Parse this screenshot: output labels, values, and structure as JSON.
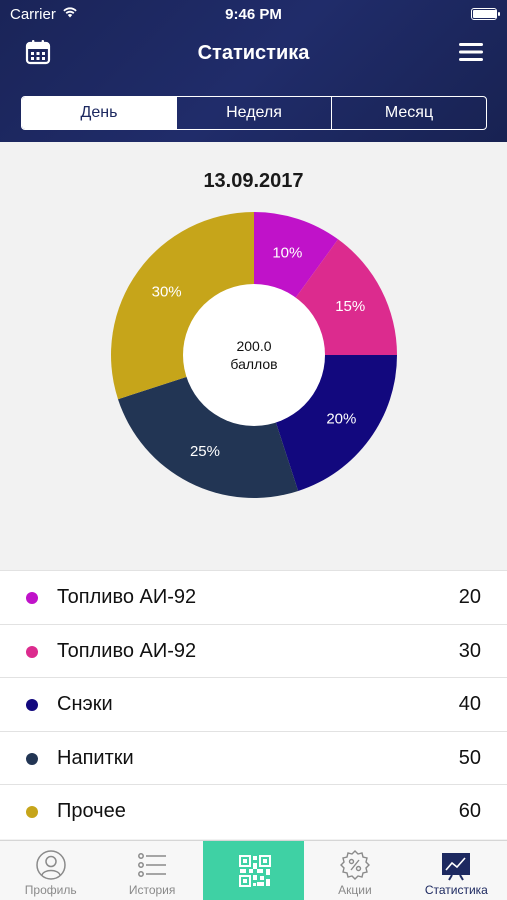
{
  "status": {
    "carrier": "Carrier",
    "time": "9:46 PM",
    "battery_level": 1.0
  },
  "nav": {
    "title": "Статистика",
    "left_icon": "calendar-icon",
    "right_icon": "hamburger-menu-icon"
  },
  "segments": [
    {
      "label": "День",
      "active": true
    },
    {
      "label": "Неделя",
      "active": false
    },
    {
      "label": "Месяц",
      "active": false
    }
  ],
  "date": "13.09.2017",
  "chart_data": {
    "type": "pie",
    "center_value": "200.0",
    "center_unit": "баллов",
    "slices": [
      {
        "label": "10%",
        "value": 10,
        "color": "#c012c9"
      },
      {
        "label": "15%",
        "value": 15,
        "color": "#dc2b8e"
      },
      {
        "label": "20%",
        "value": 20,
        "color": "#12087e"
      },
      {
        "label": "25%",
        "value": 25,
        "color": "#223554"
      },
      {
        "label": "30%",
        "value": 30,
        "color": "#c6a51a"
      }
    ]
  },
  "legend": [
    {
      "label": "Топливо АИ-92",
      "value": "20",
      "color": "#c012c9"
    },
    {
      "label": "Топливо АИ-92",
      "value": "30",
      "color": "#dc2b8e"
    },
    {
      "label": "Снэки",
      "value": "40",
      "color": "#12087e"
    },
    {
      "label": "Напитки",
      "value": "50",
      "color": "#223554"
    },
    {
      "label": "Прочее",
      "value": "60",
      "color": "#c6a51a"
    }
  ],
  "tabs": [
    {
      "label": "Профиль",
      "icon": "profile-icon"
    },
    {
      "label": "История",
      "icon": "history-list-icon"
    },
    {
      "label": "",
      "icon": "qr-code-icon"
    },
    {
      "label": "Акции",
      "icon": "discount-icon"
    },
    {
      "label": "Статистика",
      "icon": "statistics-icon"
    }
  ],
  "colors": {
    "header": "#1d2960",
    "accent_qr": "#3fd1a4"
  }
}
